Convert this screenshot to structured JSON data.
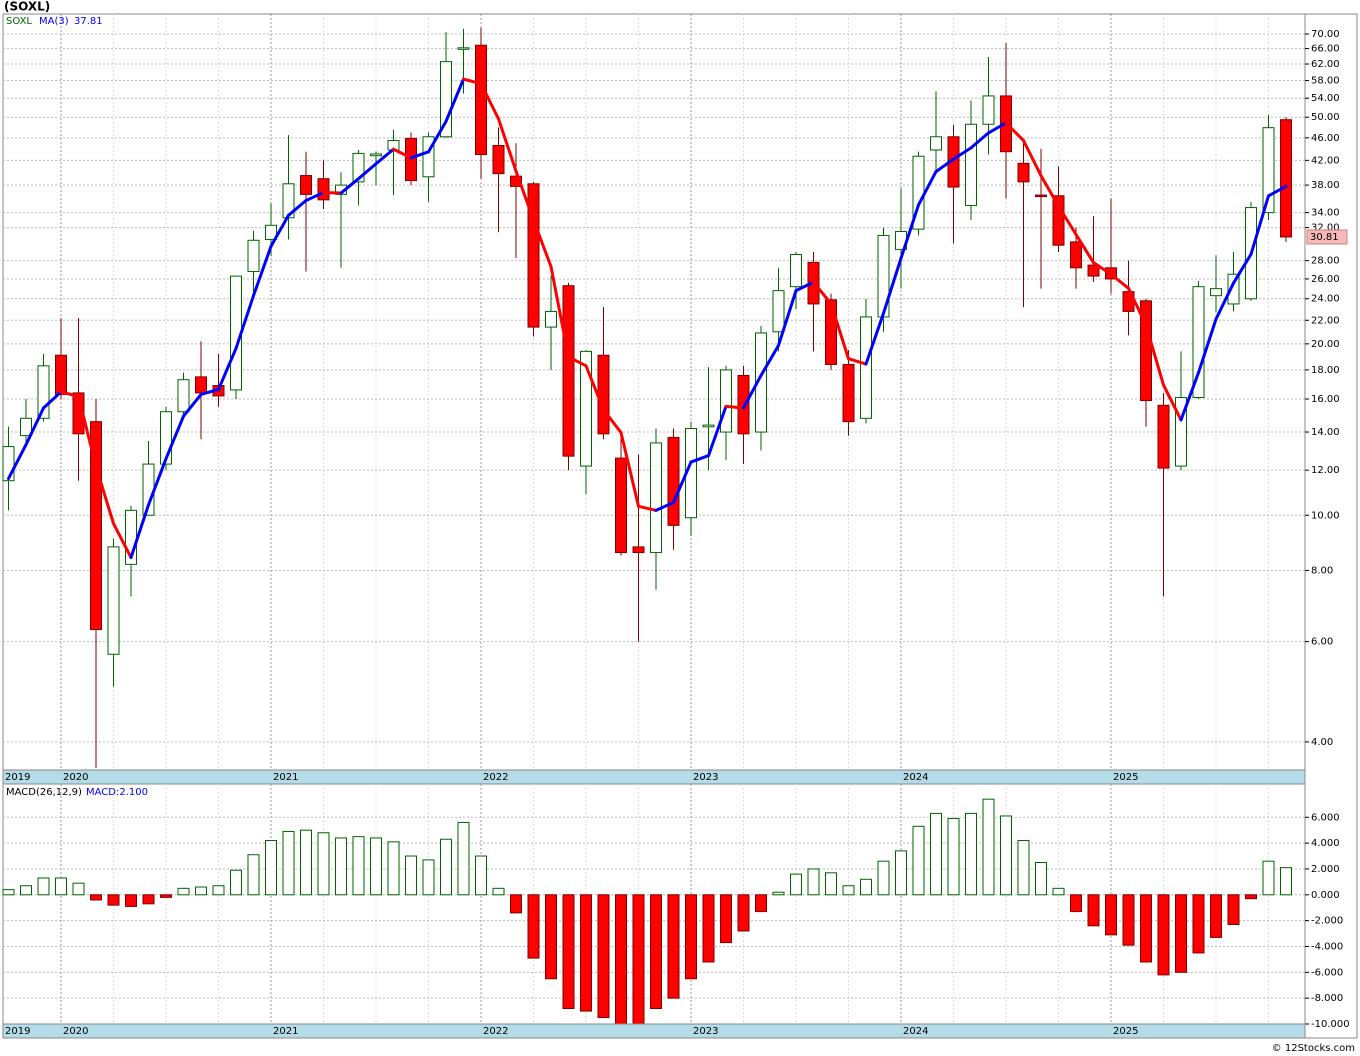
{
  "chart_data": [
    {
      "type": "candlestick",
      "title": "(SOXL)",
      "name": "SOXL",
      "categories": [
        "2019",
        null,
        null,
        "2020",
        null,
        null,
        null,
        null,
        null,
        null,
        null,
        null,
        null,
        null,
        null,
        "2021",
        null,
        null,
        null,
        null,
        null,
        null,
        null,
        null,
        null,
        null,
        null,
        "2022",
        null,
        null,
        null,
        null,
        null,
        null,
        null,
        null,
        null,
        null,
        null,
        "2023",
        null,
        null,
        null,
        null,
        null,
        null,
        null,
        null,
        null,
        null,
        null,
        "2024",
        null,
        null,
        null,
        null,
        null,
        null,
        null,
        null,
        null,
        null,
        null,
        "2025",
        null,
        null,
        null,
        null,
        null,
        null,
        null,
        null,
        null,
        null
      ],
      "open": [
        11.5,
        13.8,
        14.8,
        19.1,
        16.4,
        14.6,
        5.7,
        8.2,
        10.0,
        12.3,
        15.2,
        17.5,
        16.9,
        16.6,
        26.8,
        30.5,
        33.3,
        39.5,
        39.0,
        36.6,
        38.5,
        42.8,
        43.8,
        45.9,
        39.3,
        46.2,
        66.0,
        66.9,
        44.6,
        39.4,
        38.2,
        21.4,
        25.3,
        12.2,
        19.1,
        12.6,
        8.8,
        8.6,
        13.7,
        9.9,
        14.3,
        14.0,
        17.6,
        14.0,
        21.0,
        25.2,
        27.8,
        23.9,
        18.4,
        14.8,
        22.3,
        29.3,
        31.8,
        43.8,
        46.2,
        35.0,
        48.6,
        54.5,
        41.5,
        36.5,
        36.4,
        30.2,
        27.5,
        27.2,
        24.7,
        23.8,
        15.6,
        12.2,
        16.1,
        24.3,
        23.5,
        24.0,
        34.0,
        49.5
      ],
      "high": [
        14.3,
        16.0,
        19.2,
        22.2,
        22.2,
        16.0,
        9.1,
        10.4,
        13.5,
        15.5,
        17.8,
        20.2,
        19.2,
        26.3,
        31.6,
        35.3,
        46.5,
        43.5,
        42.0,
        40.0,
        43.8,
        43.5,
        47.5,
        47.0,
        47.0,
        70.5,
        71.5,
        71.8,
        48.0,
        45.0,
        38.5,
        26.3,
        25.6,
        19.5,
        23.2,
        13.8,
        12.8,
        14.2,
        14.2,
        14.6,
        18.2,
        18.3,
        18.3,
        21.5,
        27.2,
        29.0,
        29.0,
        24.5,
        19.5,
        24.0,
        32.0,
        37.5,
        43.5,
        55.5,
        48.5,
        53.5,
        63.8,
        67.5,
        45.0,
        44.0,
        41.0,
        32.0,
        33.5,
        36.0,
        28.0,
        24.0,
        16.4,
        19.4,
        25.8,
        28.6,
        29.0,
        35.5,
        50.5,
        50.0
      ],
      "low": [
        10.2,
        13.2,
        14.6,
        16.0,
        11.5,
        3.6,
        5.0,
        7.2,
        10.0,
        12.0,
        14.8,
        13.6,
        15.5,
        16.0,
        24.6,
        28.5,
        30.5,
        26.8,
        34.5,
        27.2,
        35.0,
        38.0,
        36.5,
        38.0,
        35.5,
        46.0,
        55.0,
        39.0,
        31.4,
        28.3,
        20.6,
        18.0,
        12.0,
        10.9,
        13.6,
        8.5,
        6.0,
        7.4,
        8.7,
        9.2,
        12.0,
        12.5,
        12.3,
        13.0,
        19.4,
        23.0,
        19.4,
        18.0,
        13.8,
        14.5,
        21.0,
        25.0,
        31.0,
        40.0,
        30.0,
        33.0,
        43.0,
        36.0,
        23.2,
        25.0,
        29.0,
        25.0,
        25.7,
        24.5,
        20.7,
        14.3,
        7.2,
        12.0,
        16.0,
        22.7,
        22.8,
        23.8,
        33.0,
        30.2
      ],
      "close": [
        13.2,
        14.8,
        18.3,
        16.3,
        13.9,
        6.3,
        8.8,
        10.2,
        12.3,
        15.2,
        17.3,
        16.4,
        16.2,
        26.3,
        30.4,
        32.3,
        38.2,
        36.6,
        35.8,
        38.0,
        43.2,
        43.1,
        45.5,
        38.7,
        46.2,
        62.6,
        66.2,
        43.0,
        39.8,
        37.8,
        21.4,
        22.8,
        12.7,
        19.4,
        13.9,
        8.6,
        8.6,
        13.4,
        9.6,
        14.2,
        14.4,
        18.0,
        13.9,
        20.9,
        24.8,
        28.7,
        23.5,
        18.4,
        14.6,
        22.3,
        31.0,
        31.5,
        42.7,
        46.2,
        37.7,
        48.6,
        54.5,
        43.5,
        38.5,
        36.4,
        29.8,
        27.2,
        26.3,
        26.0,
        22.8,
        15.9,
        12.1,
        16.1,
        25.2,
        25.0,
        26.5,
        34.7,
        47.93,
        30.81
      ],
      "up_color": "#ffffff",
      "up_edge": "#006400",
      "down_color": "#ff0000",
      "down_edge": "#800000",
      "ma": {
        "name": "MA(3)",
        "rise_color": "#0000ff",
        "fall_color": "#ff0000",
        "values": [
          11.6,
          13.3,
          15.43,
          16.47,
          16.17,
          12.17,
          9.67,
          8.43,
          10.43,
          12.57,
          14.93,
          16.3,
          16.63,
          19.63,
          24.3,
          29.67,
          33.63,
          35.7,
          36.87,
          36.8,
          39.0,
          41.43,
          43.93,
          42.43,
          43.47,
          49.17,
          58.33,
          57.27,
          49.67,
          40.2,
          33.0,
          27.33,
          18.97,
          18.3,
          15.33,
          13.97,
          10.37,
          10.2,
          10.53,
          12.4,
          12.73,
          15.53,
          15.43,
          17.6,
          19.87,
          24.8,
          25.67,
          23.53,
          18.83,
          18.43,
          22.63,
          28.27,
          35.07,
          40.13,
          42.2,
          44.17,
          46.93,
          48.87,
          45.5,
          39.47,
          34.9,
          31.13,
          27.77,
          26.5,
          25.03,
          21.57,
          16.93,
          14.7,
          17.8,
          22.1,
          25.57,
          28.73,
          36.38,
          37.81
        ]
      },
      "log_scale": true,
      "grid": true,
      "ylim": [
        3.57,
        75.9
      ],
      "yticks": [
        {
          "value": 4,
          "label": "4.00"
        },
        {
          "value": 6,
          "label": "6.00"
        },
        {
          "value": 8,
          "label": "8.00"
        },
        {
          "value": 10,
          "label": "10.00"
        },
        {
          "value": 12,
          "label": "12.00"
        },
        {
          "value": 14,
          "label": "14.00"
        },
        {
          "value": 16,
          "label": "16.00"
        },
        {
          "value": 18,
          "label": "18.00"
        },
        {
          "value": 20,
          "label": "20.00"
        },
        {
          "value": 22,
          "label": "22.00"
        },
        {
          "value": 24,
          "label": "24.00"
        },
        {
          "value": 26,
          "label": "26.00"
        },
        {
          "value": 28,
          "label": "28.00"
        },
        {
          "value": 32,
          "label": "32.00"
        },
        {
          "value": 34,
          "label": "34.00"
        },
        {
          "value": 38,
          "label": "38.00"
        },
        {
          "value": 42,
          "label": "42.00"
        },
        {
          "value": 46,
          "label": "46.00"
        },
        {
          "value": 50,
          "label": "50.00"
        },
        {
          "value": 54,
          "label": "54.00"
        },
        {
          "value": 58,
          "label": "58.00"
        },
        {
          "value": 62,
          "label": "62.00"
        },
        {
          "value": 66,
          "label": "66.00"
        },
        {
          "value": 70,
          "label": "70.00"
        }
      ]
    },
    {
      "type": "bar",
      "name": "MACD(26,12,9)",
      "categories": [
        "2019",
        null,
        null,
        "2020",
        null,
        null,
        null,
        null,
        null,
        null,
        null,
        null,
        null,
        null,
        null,
        "2021",
        null,
        null,
        null,
        null,
        null,
        null,
        null,
        null,
        null,
        null,
        null,
        "2022",
        null,
        null,
        null,
        null,
        null,
        null,
        null,
        null,
        null,
        null,
        null,
        "2023",
        null,
        null,
        null,
        null,
        null,
        null,
        null,
        null,
        null,
        null,
        null,
        "2024",
        null,
        null,
        null,
        null,
        null,
        null,
        null,
        null,
        null,
        null,
        null,
        "2025",
        null,
        null,
        null,
        null,
        null,
        null,
        null,
        null,
        null,
        null
      ],
      "values": [
        0.4,
        0.7,
        1.3,
        1.3,
        0.9,
        -0.4,
        -0.8,
        -0.9,
        -0.7,
        -0.2,
        0.5,
        0.6,
        0.7,
        1.9,
        3.1,
        4.2,
        4.9,
        5.0,
        4.8,
        4.4,
        4.5,
        4.4,
        4.1,
        3.0,
        2.7,
        4.3,
        5.6,
        3.0,
        0.5,
        -1.4,
        -4.9,
        -6.5,
        -8.8,
        -9.0,
        -9.5,
        -10.0,
        -10.0,
        -8.8,
        -8.0,
        -6.5,
        -5.2,
        -3.7,
        -2.8,
        -1.3,
        0.2,
        1.6,
        2.0,
        1.7,
        0.7,
        1.2,
        2.6,
        3.4,
        5.3,
        6.3,
        5.9,
        6.3,
        7.4,
        6.1,
        4.2,
        2.5,
        0.5,
        -1.3,
        -2.4,
        -3.1,
        -3.9,
        -5.2,
        -6.2,
        -6.0,
        -4.5,
        -3.3,
        -2.3,
        -0.3,
        2.6,
        2.1
      ],
      "last_label": "MACD:2.100",
      "pos_color": "#ffffff",
      "pos_edge": "#006400",
      "neg_color": "#ff0000",
      "neg_edge": "#800000",
      "ylim": [
        -10,
        8.42
      ],
      "yticks": [
        {
          "value": -10,
          "label": "-10.000"
        },
        {
          "value": -8,
          "label": "-8.000"
        },
        {
          "value": -6,
          "label": "-6.000"
        },
        {
          "value": -4,
          "label": "-4.000"
        },
        {
          "value": -2,
          "label": "-2.000"
        },
        {
          "value": 0,
          "label": "0.000"
        },
        {
          "value": 2,
          "label": "2.000"
        },
        {
          "value": 4,
          "label": "4.000"
        },
        {
          "value": 6,
          "label": "6.000"
        }
      ],
      "grid": true
    }
  ],
  "footer": "© 12Stocks.com"
}
